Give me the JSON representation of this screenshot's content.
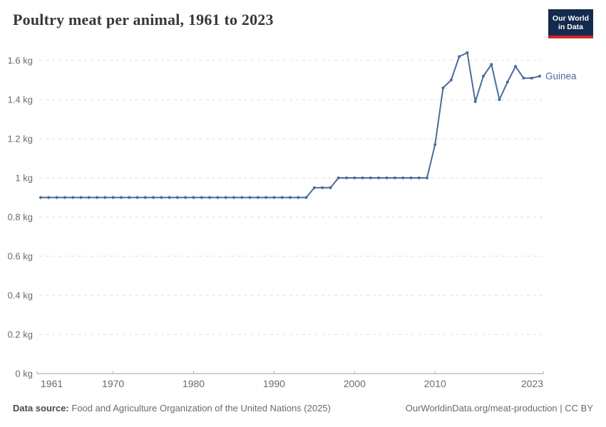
{
  "header": {
    "title": "Poultry meat per animal, 1961 to 2023",
    "logo": {
      "line1": "Our World",
      "line2": "in Data"
    }
  },
  "footer": {
    "source_label": "Data source:",
    "source_text": "Food and Agriculture Organization of the United Nations (2025)",
    "credit": "OurWorldinData.org/meat-production | CC BY"
  },
  "colors": {
    "line": "#4c6b9c",
    "grid": "#dedede",
    "axis": "#a5a5a5",
    "tick_label": "#6b6b6b",
    "title": "#383838",
    "logo_bg": "#142a4f",
    "logo_red": "#d4262c"
  },
  "chart_data": {
    "type": "line",
    "title": "Poultry meat per animal, 1961 to 2023",
    "unit": "kg",
    "xlim": [
      1961,
      2023
    ],
    "ylim": [
      0,
      1.6
    ],
    "x_ticks": [
      1961,
      1970,
      1980,
      1990,
      2000,
      2010,
      2023
    ],
    "y_ticks": [
      0,
      0.2,
      0.4,
      0.6,
      0.8,
      1,
      1.2,
      1.4,
      1.6
    ],
    "grid": true,
    "legend": "end-of-line-label",
    "series": [
      {
        "name": "Guinea",
        "color": "#4c6b9c",
        "points": [
          [
            1961,
            0.9
          ],
          [
            1962,
            0.9
          ],
          [
            1963,
            0.9
          ],
          [
            1964,
            0.9
          ],
          [
            1965,
            0.9
          ],
          [
            1966,
            0.9
          ],
          [
            1967,
            0.9
          ],
          [
            1968,
            0.9
          ],
          [
            1969,
            0.9
          ],
          [
            1970,
            0.9
          ],
          [
            1971,
            0.9
          ],
          [
            1972,
            0.9
          ],
          [
            1973,
            0.9
          ],
          [
            1974,
            0.9
          ],
          [
            1975,
            0.9
          ],
          [
            1976,
            0.9
          ],
          [
            1977,
            0.9
          ],
          [
            1978,
            0.9
          ],
          [
            1979,
            0.9
          ],
          [
            1980,
            0.9
          ],
          [
            1981,
            0.9
          ],
          [
            1982,
            0.9
          ],
          [
            1983,
            0.9
          ],
          [
            1984,
            0.9
          ],
          [
            1985,
            0.9
          ],
          [
            1986,
            0.9
          ],
          [
            1987,
            0.9
          ],
          [
            1988,
            0.9
          ],
          [
            1989,
            0.9
          ],
          [
            1990,
            0.9
          ],
          [
            1991,
            0.9
          ],
          [
            1992,
            0.9
          ],
          [
            1993,
            0.9
          ],
          [
            1994,
            0.9
          ],
          [
            1995,
            0.95
          ],
          [
            1996,
            0.95
          ],
          [
            1997,
            0.95
          ],
          [
            1998,
            1
          ],
          [
            1999,
            1
          ],
          [
            2000,
            1
          ],
          [
            2001,
            1
          ],
          [
            2002,
            1
          ],
          [
            2003,
            1
          ],
          [
            2004,
            1
          ],
          [
            2005,
            1
          ],
          [
            2006,
            1
          ],
          [
            2007,
            1
          ],
          [
            2008,
            1
          ],
          [
            2009,
            1
          ],
          [
            2010,
            1.17
          ],
          [
            2011,
            1.46
          ],
          [
            2012,
            1.5
          ],
          [
            2013,
            1.62
          ],
          [
            2014,
            1.64
          ],
          [
            2015,
            1.39
          ],
          [
            2016,
            1.52
          ],
          [
            2017,
            1.58
          ],
          [
            2018,
            1.4
          ],
          [
            2019,
            1.49
          ],
          [
            2020,
            1.57
          ],
          [
            2021,
            1.51
          ],
          [
            2022,
            1.51
          ],
          [
            2023,
            1.52
          ]
        ]
      }
    ]
  }
}
